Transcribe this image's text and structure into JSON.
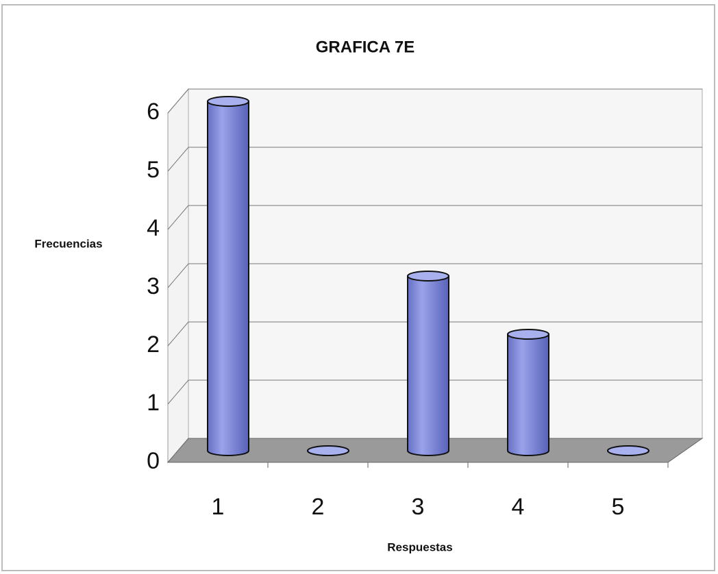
{
  "chart_data": {
    "type": "bar",
    "title": "GRAFICA 7E",
    "y_label": "Frecuencias",
    "x_label": "Respuestas",
    "categories": [
      "1",
      "2",
      "3",
      "4",
      "5"
    ],
    "values": [
      6,
      0,
      3,
      2,
      0
    ],
    "color": "#7f8ad8",
    "ylim": [
      0,
      6
    ],
    "yticks": [
      0,
      1,
      2,
      3,
      4,
      5,
      6
    ],
    "grid": true
  }
}
